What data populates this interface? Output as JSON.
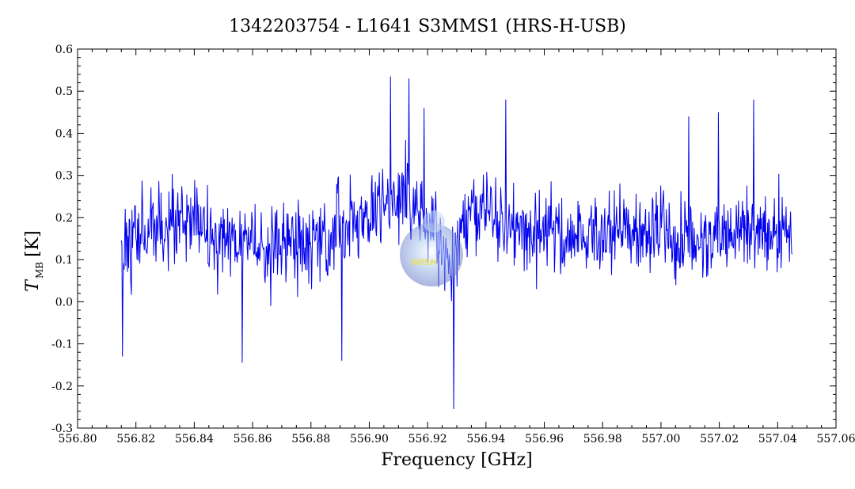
{
  "chart_data": {
    "type": "line",
    "title": "1342203754 - L1641 S3MMS1 (HRS-H-USB)",
    "xlabel": "Frequency [GHz]",
    "ylabel_main": "T",
    "ylabel_sub": "MB",
    "ylabel_unit": "[K]",
    "xlim": [
      556.8,
      557.06
    ],
    "ylim": [
      -0.3,
      0.6
    ],
    "x_ticks": [
      "556.80",
      "556.82",
      "556.84",
      "556.86",
      "556.88",
      "556.90",
      "556.92",
      "556.94",
      "556.96",
      "556.98",
      "557.00",
      "557.02",
      "557.04",
      "557.06"
    ],
    "x_tick_values": [
      556.8,
      556.82,
      556.84,
      556.86,
      556.88,
      556.9,
      556.92,
      556.94,
      556.96,
      556.98,
      557.0,
      557.02,
      557.04,
      557.06
    ],
    "y_ticks": [
      "-0.3",
      "-0.2",
      "-0.1",
      "0.0",
      "0.1",
      "0.2",
      "0.3",
      "0.4",
      "0.5",
      "0.6"
    ],
    "y_tick_values": [
      -0.3,
      -0.2,
      -0.1,
      0.0,
      0.1,
      0.2,
      0.3,
      0.4,
      0.5,
      0.6
    ],
    "grid": false,
    "series": [
      {
        "color": "#0000ee",
        "x_start": 556.815,
        "x_end": 557.045,
        "envelope_x": [
          556.815,
          556.825,
          556.84,
          556.86,
          556.88,
          556.895,
          556.905,
          556.915,
          556.922,
          556.928,
          556.935,
          556.95,
          556.97,
          556.99,
          557.01,
          557.03,
          557.045
        ],
        "envelope_mean": [
          0.12,
          0.19,
          0.17,
          0.13,
          0.14,
          0.18,
          0.24,
          0.25,
          0.17,
          0.08,
          0.24,
          0.17,
          0.16,
          0.17,
          0.14,
          0.17,
          0.17
        ],
        "noise_amplitude": 0.075,
        "spikes": [
          {
            "x": 556.8153,
            "y": -0.13
          },
          {
            "x": 556.8565,
            "y": -0.145
          },
          {
            "x": 556.8905,
            "y": -0.14
          },
          {
            "x": 556.9072,
            "y": 0.535
          },
          {
            "x": 556.9136,
            "y": 0.53
          },
          {
            "x": 556.9188,
            "y": 0.46
          },
          {
            "x": 556.929,
            "y": -0.255
          },
          {
            "x": 556.9467,
            "y": 0.48
          },
          {
            "x": 557.0095,
            "y": 0.44
          },
          {
            "x": 557.0197,
            "y": 0.45
          },
          {
            "x": 557.0318,
            "y": 0.48
          }
        ]
      }
    ]
  },
  "watermark": {
    "text": "WISH",
    "color": "#6a78c8"
  }
}
